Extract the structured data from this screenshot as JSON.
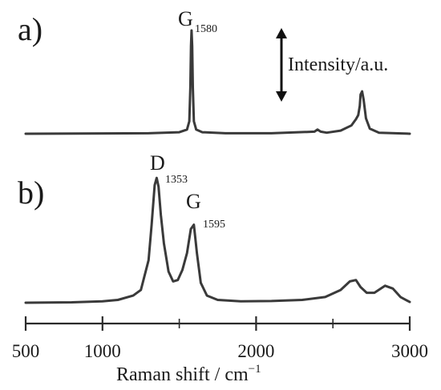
{
  "chart_data": {
    "type": "line",
    "xlabel": "Raman shift / cm",
    "xlabel_superscript": "−1",
    "xlim": [
      500,
      3000
    ],
    "x_ticks_major": [
      500,
      1000,
      2000,
      3000
    ],
    "x_tick_labels": [
      "500",
      "1000",
      "2000",
      "3000"
    ],
    "x_ticks_minor": [
      1500,
      2500
    ],
    "intensity_label": "Intensity/a.u.",
    "series": [
      {
        "panel": "a)",
        "annotations": [
          {
            "text": "G",
            "sub": "1580",
            "x": 1580
          }
        ],
        "x": [
          500,
          1300,
          1500,
          1550,
          1565,
          1572,
          1576,
          1580,
          1584,
          1588,
          1595,
          1610,
          1650,
          1800,
          2100,
          2380,
          2400,
          2420,
          2460,
          2550,
          2620,
          2650,
          2665,
          2675,
          2680,
          2690,
          2700,
          2715,
          2740,
          2800,
          3000
        ],
        "y": [
          0.0,
          0.005,
          0.015,
          0.04,
          0.12,
          0.45,
          0.85,
          1.0,
          0.85,
          0.45,
          0.12,
          0.04,
          0.015,
          0.005,
          0.005,
          0.02,
          0.04,
          0.02,
          0.01,
          0.03,
          0.08,
          0.14,
          0.18,
          0.27,
          0.38,
          0.41,
          0.33,
          0.15,
          0.05,
          0.01,
          0.0
        ]
      },
      {
        "panel": "b)",
        "annotations": [
          {
            "text": "D",
            "sub": "1353",
            "x": 1353
          },
          {
            "text": "G",
            "sub": "1595",
            "x": 1595
          }
        ],
        "x": [
          500,
          800,
          1000,
          1100,
          1200,
          1250,
          1300,
          1320,
          1340,
          1353,
          1365,
          1380,
          1400,
          1430,
          1460,
          1490,
          1520,
          1550,
          1575,
          1595,
          1615,
          1640,
          1680,
          1750,
          1900,
          2100,
          2300,
          2450,
          2550,
          2610,
          2650,
          2680,
          2720,
          2770,
          2840,
          2890,
          2940,
          3000
        ],
        "y": [
          0.0,
          0.003,
          0.01,
          0.02,
          0.05,
          0.09,
          0.3,
          0.55,
          0.83,
          0.88,
          0.82,
          0.62,
          0.42,
          0.22,
          0.15,
          0.16,
          0.23,
          0.35,
          0.52,
          0.55,
          0.35,
          0.14,
          0.05,
          0.02,
          0.01,
          0.012,
          0.02,
          0.04,
          0.09,
          0.15,
          0.16,
          0.11,
          0.07,
          0.07,
          0.12,
          0.1,
          0.04,
          0.005
        ]
      }
    ]
  }
}
